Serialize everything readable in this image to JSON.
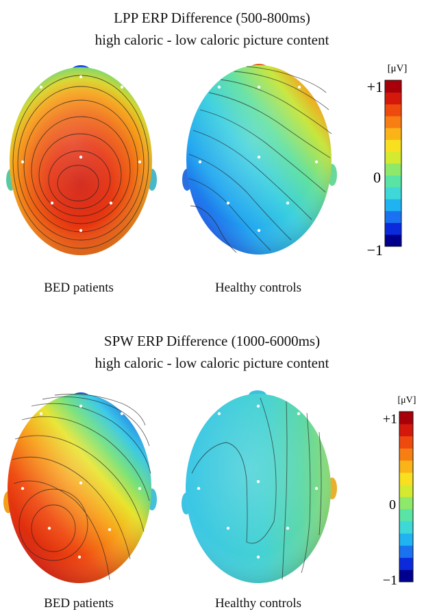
{
  "panels": [
    {
      "title_line1": "LPP ERP Difference (500-800ms)",
      "title_line2": "high caloric - low caloric picture content",
      "left_label": "BED patients",
      "right_label": "Healthy controls",
      "colorbar": {
        "unit": "[μV]",
        "max_label": "+1",
        "mid_label": "0",
        "min_label": "−1"
      }
    },
    {
      "title_line1": "SPW ERP Difference (1000-6000ms)",
      "title_line2": "high caloric - low caloric picture content",
      "left_label": "BED patients",
      "right_label": "Healthy controls",
      "colorbar": {
        "unit": "[μV]",
        "max_label": "+1",
        "mid_label": "0",
        "min_label": "−1"
      }
    }
  ],
  "colorbar_stops": [
    "#00008f",
    "#0a2adc",
    "#1a72f0",
    "#1fb3f2",
    "#3fd8d8",
    "#59e3a4",
    "#8ee86a",
    "#d4ea30",
    "#f8e020",
    "#fbb418",
    "#f77e12",
    "#ee4a0e",
    "#d4180c",
    "#a8000a"
  ]
}
